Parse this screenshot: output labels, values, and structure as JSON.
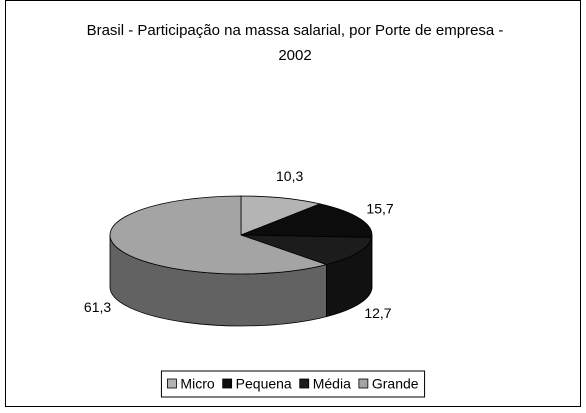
{
  "chart_data": {
    "type": "pie",
    "title": "Brasil - Participação na massa salarial, por Porte de empresa - 2002",
    "categories": [
      "Micro",
      "Pequena",
      "Média",
      "Grande"
    ],
    "values": [
      10.3,
      15.7,
      12.7,
      61.3
    ],
    "value_labels": [
      "10,3",
      "15,7",
      "12,7",
      "61,3"
    ],
    "colors": [
      "#b4b4b4",
      "#0c0c0c",
      "#1c1c1c",
      "#a4a4a4"
    ],
    "legend": "bottom"
  }
}
